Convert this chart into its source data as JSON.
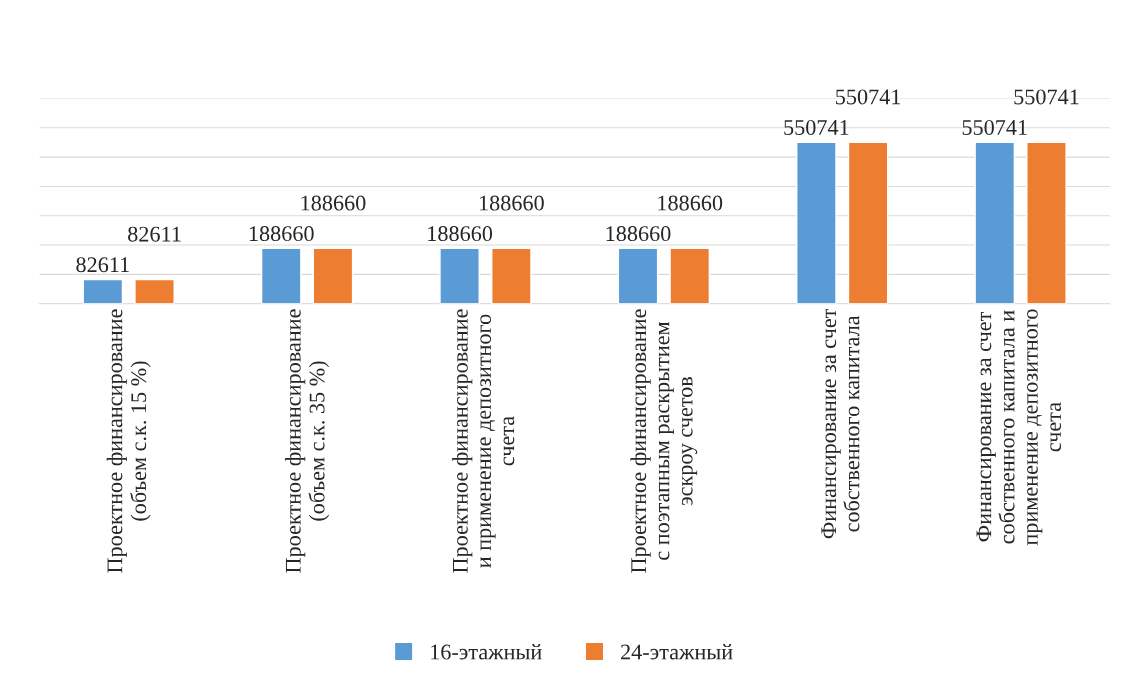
{
  "chart_data": {
    "type": "bar",
    "categories": [
      "Проектное финансирование\n(объем с.к. 15 %)",
      "Проектное финансирование\n(объем с.к. 35 %)",
      "Проектное финансирование\nи применение депозитного\nсчета",
      "Проектное финансирование\nс поэтапным раскрытием\nэскроу счетов",
      "Финансирование за счет\nсобственного капитала",
      "Финансирование за счет\nсобственного капитала и\nприменение депозитного\nсчета"
    ],
    "series": [
      {
        "name": "16-этажный",
        "color": "#5b9bd5",
        "values": [
          82611,
          188660,
          188660,
          188660,
          550741,
          550741
        ]
      },
      {
        "name": "24-этажный",
        "color": "#ed7d31",
        "values": [
          82611,
          188660,
          188660,
          188660,
          550741,
          550741
        ]
      }
    ],
    "ylim": [
      0,
      700000
    ],
    "yticks": [
      {
        "value": 0,
        "label": null
      },
      {
        "value": 100000,
        "label": null
      },
      {
        "value": 200000,
        "label": null
      },
      {
        "value": 300000,
        "label": null
      },
      {
        "value": 400000,
        "label": null
      },
      {
        "value": 500000,
        "label": null
      },
      {
        "value": 600000,
        "label": null
      },
      {
        "value": 700000,
        "label": null
      }
    ],
    "tick_labels": "x",
    "grid": "y",
    "data_labels": true,
    "legend": "bottom"
  }
}
